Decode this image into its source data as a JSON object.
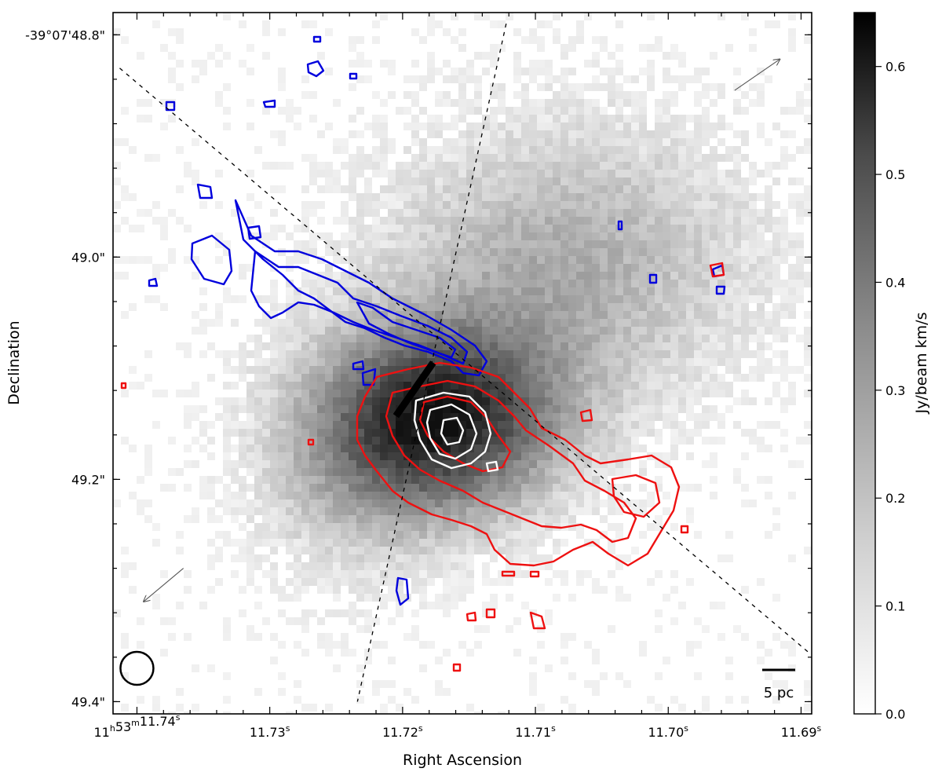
{
  "chart_data": {
    "type": "heatmap",
    "title": "",
    "xlabel": "Right Ascension",
    "ylabel": "Declination",
    "colorbar": {
      "label": "Jy/beam km/s",
      "range": [
        0.0,
        0.65
      ],
      "ticks": [
        0.0,
        0.1,
        0.2,
        0.3,
        0.4,
        0.5,
        0.6
      ],
      "tick_labels": [
        "0.0",
        "0.1",
        "0.2",
        "0.3",
        "0.4",
        "0.5",
        "0.6"
      ],
      "colormap": "greys"
    },
    "x_ticks": [
      {
        "value": 11.74,
        "label_main": "11",
        "sup_h": "h",
        "label_mid": "53",
        "sup_m": "m",
        "label_sec": "11.74",
        "sup_s": "s"
      },
      {
        "value": 11.73,
        "label_sec": "11.73",
        "sup_s": "s"
      },
      {
        "value": 11.72,
        "label_sec": "11.72",
        "sup_s": "s"
      },
      {
        "value": 11.71,
        "label_sec": "11.71",
        "sup_s": "s"
      },
      {
        "value": 11.7,
        "label_sec": "11.70",
        "sup_s": "s"
      },
      {
        "value": 11.69,
        "label_sec": "11.69",
        "sup_s": "s"
      }
    ],
    "y_ticks": [
      {
        "value": 48.8,
        "label": "-39°07'48.8\""
      },
      {
        "value": 49.0,
        "label": "49.0\""
      },
      {
        "value": 49.2,
        "label": "49.2\""
      },
      {
        "value": 49.4,
        "label": "49.4\""
      }
    ],
    "xlim": [
      11.7418,
      11.6892
    ],
    "ylim": [
      49.411,
      48.78
    ],
    "moment0_peak": {
      "ra": 11.7172,
      "dec": 49.146,
      "value": 0.65
    },
    "overlays": {
      "blue_contour_color": "#0000dd",
      "red_contour_color": "#ee1111",
      "white_contour_color": "#ffffff",
      "major_axis_line": [
        [
          11.7413,
          48.83
        ],
        [
          11.6895,
          49.355
        ]
      ],
      "minor_axis_line": [
        [
          11.7122,
          48.79
        ],
        [
          11.7234,
          49.4
        ]
      ],
      "jet_bar": [
        [
          11.7205,
          49.143
        ],
        [
          11.7177,
          49.095
        ]
      ],
      "arrow_ne": [
        [
          11.695,
          48.85
        ],
        [
          11.6916,
          48.822
        ]
      ],
      "arrow_sw": [
        [
          11.7365,
          49.28
        ],
        [
          11.7395,
          49.31
        ]
      ],
      "beam_center": [
        11.74,
        49.37
      ]
    },
    "scale_bar_label": "5 pc"
  }
}
